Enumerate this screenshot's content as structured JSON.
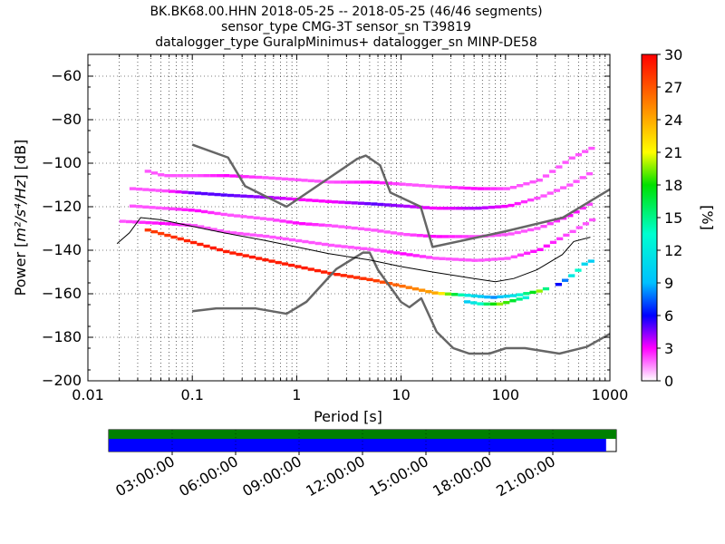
{
  "chart_data": {
    "type": "heatmap",
    "title_lines": [
      "BK.BK68.00.HHN   2018-05-25 -- 2018-05-25  (46/46 segments)",
      "sensor_type CMG-3T sensor_sn T39819",
      "datalogger_type GuralpMinimus+ datalogger_sn MINP-DE58"
    ],
    "xlabel": "Period [s]",
    "ylabel_prefix": "Power [",
    "ylabel_math": "m²/s⁴/Hz",
    "ylabel_suffix": "] [dB]",
    "x_scale": "log",
    "xlim": [
      0.01,
      1000
    ],
    "ylim": [
      -200,
      -50
    ],
    "x_ticks": [
      0.01,
      0.1,
      1,
      10,
      100,
      1000
    ],
    "x_tick_labels": [
      "0.01",
      "0.1",
      "1",
      "10",
      "100",
      "1000"
    ],
    "y_ticks": [
      -200,
      -180,
      -160,
      -140,
      -120,
      -100,
      -80,
      -60
    ],
    "y_tick_labels": [
      "−200",
      "−180",
      "−160",
      "−140",
      "−120",
      "−100",
      "−80",
      "−60"
    ],
    "grid": true,
    "colorbar": {
      "label": "[%]",
      "range": [
        0,
        30
      ],
      "ticks": [
        0,
        3,
        6,
        9,
        12,
        15,
        18,
        21,
        24,
        27,
        30
      ],
      "tick_labels": [
        "0",
        "3",
        "6",
        "9",
        "12",
        "15",
        "18",
        "21",
        "24",
        "27",
        "30"
      ],
      "colormap": "pqlx"
    },
    "noise_models": [
      {
        "name": "",
        "x": [
          0.1,
          0.17,
          0.4,
          0.8,
          1.24,
          2.4,
          4.3,
          5.0,
          6.0,
          10.0,
          12.0,
          15.6,
          21.9,
          31.6,
          45.0,
          70.0,
          101.0,
          154.0,
          328.0,
          600.0,
          1000.0
        ],
        "y": [
          -168,
          -166.7,
          -166.7,
          -169.2,
          -163.7,
          -148.6,
          -141.1,
          -141.1,
          -149.0,
          -163.8,
          -166.2,
          -162.1,
          -177.5,
          -185.0,
          -187.5,
          -187.5,
          -185.0,
          -185.0,
          -187.5,
          -184.4,
          -178.4
        ]
      },
      {
        "name": "",
        "x": [
          0.1,
          0.22,
          0.32,
          0.8,
          3.8,
          4.6,
          6.3,
          7.9,
          15.4,
          20.0,
          100.0,
          354.8,
          1000.0
        ],
        "y": [
          -91.5,
          -97.4,
          -110.5,
          -120.0,
          -98.0,
          -96.5,
          -101.0,
          -113.5,
          -120.0,
          -138.5,
          -131.3,
          -125.0,
          -112.0
        ]
      }
    ],
    "mode_line": {
      "x": [
        0.019,
        0.025,
        0.032,
        0.05,
        0.1,
        0.2,
        0.5,
        1,
        2,
        5,
        10,
        20,
        50,
        80,
        120,
        200,
        350,
        450,
        650
      ],
      "y": [
        -137,
        -132,
        -125,
        -126,
        -129,
        -132,
        -135.5,
        -138.5,
        -141.5,
        -144.5,
        -147.5,
        -150,
        -153,
        -154.5,
        -153,
        -149,
        -142,
        -136,
        -134
      ]
    },
    "heat_bands": [
      {
        "x": [
          0.035,
          0.05,
          0.1,
          0.2,
          0.5,
          1,
          2,
          5,
          10,
          20,
          40,
          70,
          120,
          200,
          260
        ],
        "y": [
          -131,
          -133,
          -137,
          -141,
          -145,
          -148,
          -151,
          -154,
          -157,
          -160,
          -161,
          -162,
          -161,
          -159,
          -157
        ],
        "percent": [
          28,
          28,
          29,
          29,
          29,
          29,
          29,
          28,
          26,
          24,
          12,
          8,
          12,
          20,
          10
        ]
      },
      {
        "x": [
          40,
          55,
          70,
          85,
          100,
          120,
          150
        ],
        "y": [
          -164,
          -165,
          -165,
          -165,
          -164,
          -163,
          -162
        ],
        "percent": [
          10,
          14,
          18,
          20,
          18,
          16,
          12
        ]
      },
      {
        "x": [
          300,
          350,
          400,
          450,
          500,
          550,
          650
        ],
        "y": [
          -156,
          -154,
          -152,
          -150,
          -148,
          -146,
          -145
        ],
        "percent": [
          6,
          8,
          12,
          14,
          12,
          10,
          10
        ]
      },
      {
        "x": [
          0.035,
          0.05,
          0.1,
          0.2,
          0.5,
          1,
          2,
          5,
          10,
          20,
          50,
          100,
          200,
          400,
          650
        ],
        "y": [
          -104,
          -106,
          -106,
          -106,
          -107,
          -108,
          -109,
          -109,
          -110,
          -111,
          -112,
          -112,
          -108,
          -98,
          -93
        ],
        "percent": [
          2,
          2,
          2,
          3,
          2,
          2,
          2,
          3,
          2,
          2,
          3,
          2,
          2,
          2,
          2
        ]
      },
      {
        "x": [
          0.025,
          0.05,
          0.1,
          0.2,
          0.5,
          1,
          2,
          5,
          10,
          20,
          50,
          100,
          200,
          400,
          650
        ],
        "y": [
          -112,
          -113,
          -114,
          -115,
          -116,
          -117,
          -118,
          -119,
          -120,
          -121,
          -121,
          -120,
          -116,
          -110,
          -104
        ],
        "percent": [
          2,
          2,
          5,
          5,
          4,
          3,
          3,
          5,
          4,
          3,
          4,
          3,
          2,
          2,
          2
        ]
      },
      {
        "x": [
          0.025,
          0.05,
          0.1,
          0.2,
          0.5,
          1,
          2,
          5,
          10,
          20,
          50,
          100,
          200,
          400,
          650
        ],
        "y": [
          -120,
          -121,
          -122,
          -124,
          -126,
          -128,
          -129,
          -131,
          -133,
          -134,
          -134,
          -133,
          -130,
          -124,
          -118
        ],
        "percent": [
          2,
          2,
          3,
          2,
          2,
          3,
          2,
          2,
          2,
          3,
          2,
          2,
          2,
          3,
          2
        ]
      },
      {
        "x": [
          0.02,
          0.05,
          0.1,
          0.2,
          0.5,
          1,
          2,
          5,
          10,
          20,
          50,
          100,
          200,
          400,
          650
        ],
        "y": [
          -127,
          -128,
          -129,
          -132,
          -134,
          -136,
          -138,
          -140,
          -142,
          -144,
          -145,
          -144,
          -140,
          -132,
          -126
        ],
        "percent": [
          2,
          3,
          2,
          2,
          2,
          2,
          2,
          2,
          3,
          2,
          2,
          2,
          3,
          2,
          2
        ]
      }
    ]
  },
  "timeline": {
    "labels": [
      "03:00:00",
      "06:00:00",
      "09:00:00",
      "12:00:00",
      "15:00:00",
      "18:00:00",
      "21:00:00"
    ],
    "data_coverage_fraction": 0.98,
    "coverage_colors": {
      "top": "#008000",
      "bottom": "#0000ff"
    }
  }
}
